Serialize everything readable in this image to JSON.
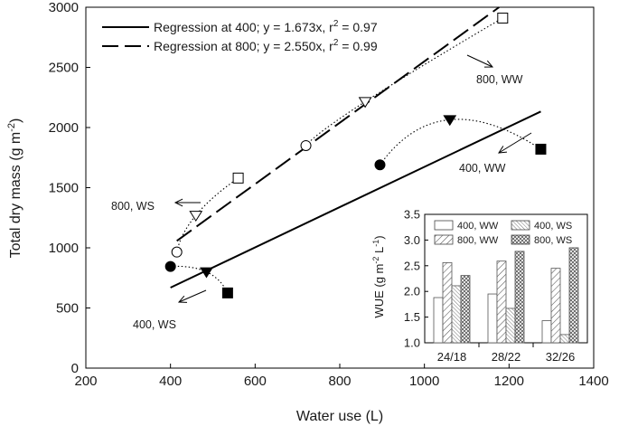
{
  "chart_data": [
    {
      "type": "scatter",
      "xlabel": "Water use (L)",
      "ylabel": "Total dry mass (g m",
      "ylabel_sup": "-2",
      "ylabel_end": ")",
      "xlim": [
        200,
        1400
      ],
      "ylim": [
        0,
        3000
      ],
      "xticks": [
        "200",
        "400",
        "600",
        "800",
        "1000",
        "1200",
        "1400"
      ],
      "yticks": [
        "0",
        "500",
        "1000",
        "1500",
        "2000",
        "2500",
        "3000"
      ],
      "legend": {
        "placement": "top-left",
        "entries": [
          {
            "text_before": "Regression at 400; y = 1.673x, r",
            "sup": "2",
            "text_after": " = 0.97",
            "style": "solid"
          },
          {
            "text_before": "Regression at 800; y = 2.550x, r",
            "sup": "2",
            "text_after": " = 0.99",
            "style": "dashed"
          }
        ]
      },
      "regressions": [
        {
          "name": "Regression at 400",
          "slope": 1.673,
          "x_range": [
            400,
            1275
          ],
          "style": "solid"
        },
        {
          "name": "Regression at 800",
          "slope": 2.55,
          "x_range": [
            415,
            1185
          ],
          "style": "dashed"
        }
      ],
      "groups": [
        {
          "label": "800, WW",
          "points": [
            {
              "x": 720,
              "y": 1850,
              "marker": "open-circle"
            },
            {
              "x": 860,
              "y": 2215,
              "marker": "open-triangle"
            },
            {
              "x": 1185,
              "y": 2910,
              "marker": "open-square"
            }
          ]
        },
        {
          "label": "800, WS",
          "points": [
            {
              "x": 415,
              "y": 965,
              "marker": "open-circle"
            },
            {
              "x": 460,
              "y": 1270,
              "marker": "open-triangle"
            },
            {
              "x": 560,
              "y": 1580,
              "marker": "open-square"
            }
          ]
        },
        {
          "label": "400, WW",
          "points": [
            {
              "x": 895,
              "y": 1690,
              "marker": "filled-circle"
            },
            {
              "x": 1060,
              "y": 2065,
              "marker": "filled-triangle"
            },
            {
              "x": 1275,
              "y": 1820,
              "marker": "filled-square"
            }
          ]
        },
        {
          "label": "400, WS",
          "points": [
            {
              "x": 400,
              "y": 845,
              "marker": "filled-circle"
            },
            {
              "x": 485,
              "y": 800,
              "marker": "filled-triangle"
            },
            {
              "x": 535,
              "y": 625,
              "marker": "filled-square"
            }
          ]
        }
      ],
      "annotations": [
        "800, WW",
        "800, WS",
        "400, WW",
        "400, WS"
      ]
    },
    {
      "type": "bar",
      "placement": "inset, lower-right",
      "ylabel": "WUE (g m",
      "ylabel_sup1": "-2",
      "ylabel_mid": " L",
      "ylabel_sup2": "-1",
      "ylabel_end": ")",
      "ylim": [
        1.0,
        3.5
      ],
      "yticks": [
        "1.0",
        "1.5",
        "2.0",
        "2.5",
        "3.0",
        "3.5"
      ],
      "categories": [
        "24/18",
        "28/22",
        "32/26"
      ],
      "series": [
        {
          "name": "400, WW",
          "pattern": "none",
          "values": [
            1.88,
            1.95,
            1.43
          ]
        },
        {
          "name": "800, WW",
          "pattern": "hatch",
          "values": [
            2.56,
            2.59,
            2.45
          ]
        },
        {
          "name": "400, WS",
          "pattern": "hatch-dense",
          "values": [
            2.11,
            1.67,
            1.16
          ]
        },
        {
          "name": "800, WS",
          "pattern": "crosshatch",
          "values": [
            2.31,
            2.78,
            2.85
          ]
        }
      ],
      "legend_entries": [
        "400, WW",
        "400, WS",
        "800, WW",
        "800, WS"
      ],
      "legend_placement": "top"
    }
  ]
}
